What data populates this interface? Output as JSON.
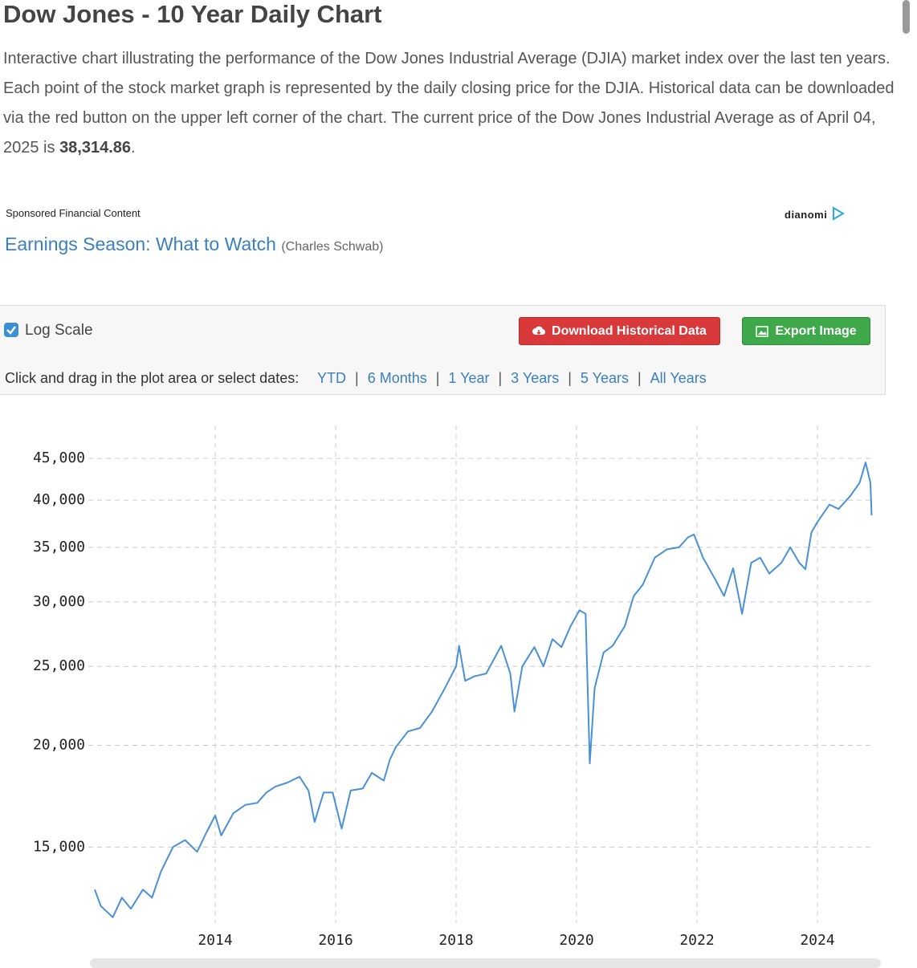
{
  "header": {
    "title": "Dow Jones - 10 Year Daily Chart",
    "description_before": "Interactive chart illustrating the performance of the Dow Jones Industrial Average (DJIA) market index over the last ten years. Each point of the stock market graph is represented by the daily closing price for the DJIA. Historical data can be downloaded via the red button on the upper left corner of the chart. The current price of the Dow Jones Industrial Average as of April 04, 2025 is",
    "description_value": "38,314.86",
    "description_after": "."
  },
  "ad": {
    "sponsored": "Sponsored Financial Content",
    "brand": "dianomi",
    "link": "Earnings Season: What to Watch",
    "source": "(Charles Schwab)"
  },
  "controls": {
    "log_scale": "Log Scale",
    "download": "Download Historical Data",
    "export": "Export Image",
    "prompt": "Click and drag in the plot area or select dates:",
    "ranges": [
      "YTD",
      "6 Months",
      "1 Year",
      "3 Years",
      "5 Years",
      "All Years"
    ]
  },
  "chart_data": {
    "type": "line",
    "log_scale": true,
    "grid": true,
    "color": "#4a90d9",
    "xlim": [
      2012,
      2024.92
    ],
    "xticks": [
      2014,
      2016,
      2018,
      2020,
      2022,
      2024
    ],
    "ylim": [
      12100,
      51700
    ],
    "yticks": [
      {
        "value": 15000,
        "label": "15,000"
      },
      {
        "value": 20000,
        "label": "20,000"
      },
      {
        "value": 25000,
        "label": "25,000"
      },
      {
        "value": 30000,
        "label": "30,000"
      },
      {
        "value": 35000,
        "label": "35,000"
      },
      {
        "value": 40000,
        "label": "40,000"
      },
      {
        "value": 45000,
        "label": "45,000"
      }
    ],
    "x": [
      2012.0,
      2012.1,
      2012.3,
      2012.45,
      2012.6,
      2012.8,
      2012.95,
      2013.1,
      2013.3,
      2013.5,
      2013.7,
      2013.85,
      2014.0,
      2014.1,
      2014.3,
      2014.5,
      2014.7,
      2014.85,
      2015.0,
      2015.2,
      2015.4,
      2015.55,
      2015.65,
      2015.8,
      2015.95,
      2016.1,
      2016.25,
      2016.45,
      2016.6,
      2016.8,
      2016.9,
      2017.0,
      2017.2,
      2017.4,
      2017.6,
      2017.8,
      2018.0,
      2018.05,
      2018.15,
      2018.3,
      2018.5,
      2018.75,
      2018.9,
      2018.97,
      2019.1,
      2019.3,
      2019.45,
      2019.6,
      2019.75,
      2019.9,
      2020.05,
      2020.15,
      2020.22,
      2020.3,
      2020.45,
      2020.6,
      2020.8,
      2020.95,
      2021.1,
      2021.3,
      2021.5,
      2021.7,
      2021.85,
      2021.95,
      2022.1,
      2022.3,
      2022.45,
      2022.6,
      2022.75,
      2022.9,
      2023.05,
      2023.2,
      2023.4,
      2023.55,
      2023.7,
      2023.8,
      2023.9,
      2024.0,
      2024.2,
      2024.35,
      2024.55,
      2024.7,
      2024.8,
      2024.88,
      2024.9
    ],
    "values": [
      13300,
      12700,
      12300,
      13000,
      12600,
      13300,
      13000,
      14000,
      15000,
      15300,
      14800,
      15600,
      16400,
      15500,
      16500,
      16900,
      17000,
      17500,
      17800,
      18000,
      18300,
      17600,
      16100,
      17500,
      17500,
      15800,
      17600,
      17700,
      18500,
      18100,
      19200,
      19900,
      20800,
      21000,
      22000,
      23400,
      25000,
      26500,
      24000,
      24300,
      24500,
      26500,
      24500,
      22000,
      25000,
      26400,
      25000,
      27000,
      26400,
      28000,
      29300,
      29000,
      19000,
      23500,
      26000,
      26500,
      28000,
      30500,
      31500,
      34000,
      34800,
      35000,
      36000,
      36300,
      34000,
      32000,
      30500,
      33000,
      29000,
      33500,
      34000,
      32500,
      33500,
      35000,
      33500,
      32900,
      36500,
      37600,
      39500,
      39000,
      40500,
      42000,
      44500,
      42000,
      38300
    ]
  }
}
